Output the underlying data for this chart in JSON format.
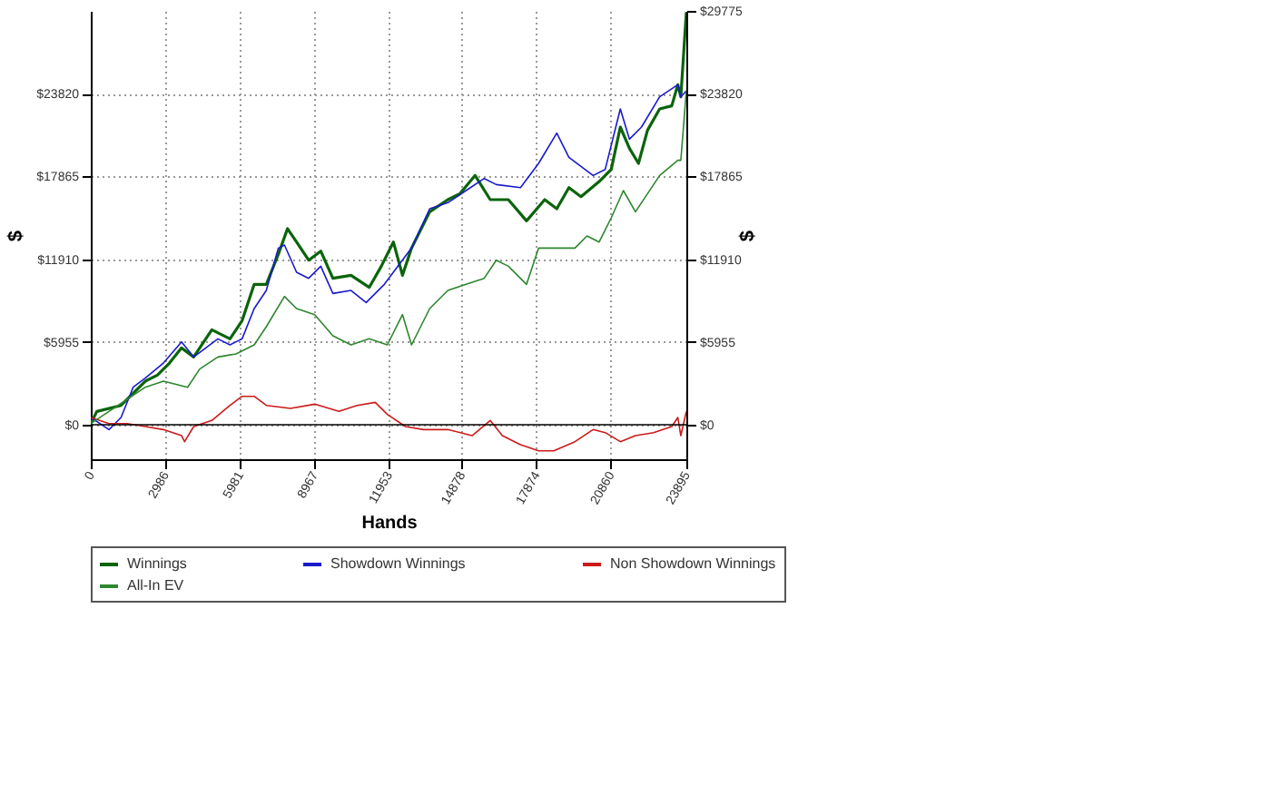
{
  "chart_data": {
    "type": "line",
    "xlabel": "Hands",
    "ylabel": "$",
    "y2label": "$",
    "xlim": [
      0,
      23895
    ],
    "xticks": [
      0,
      2986,
      5981,
      8967,
      11953,
      14878,
      17874,
      20860,
      23895
    ],
    "ylim": [
      -2480,
      29775
    ],
    "yticks": [
      {
        "value": 0,
        "label": "$0"
      },
      {
        "value": 5955,
        "label": "$5955"
      },
      {
        "value": 11910,
        "label": "$11910"
      },
      {
        "value": 17865,
        "label": "$17865"
      },
      {
        "value": 23820,
        "label": "$23820"
      }
    ],
    "y2lim": [
      -2480,
      29775
    ],
    "y2ticks": [
      {
        "value": 0,
        "label": "$0"
      },
      {
        "value": 5955,
        "label": "$5955"
      },
      {
        "value": 11910,
        "label": "$11910"
      },
      {
        "value": 17865,
        "label": "$17865"
      },
      {
        "value": 23820,
        "label": "$23820"
      },
      {
        "value": 29775,
        "label": "$29775"
      }
    ],
    "grid": true,
    "legend": "bottom",
    "marker": "none",
    "line_style": "solid",
    "ref_lines": [
      {
        "axis": "y",
        "value": 0,
        "color": "#000000"
      }
    ],
    "series": [
      {
        "name": "Winnings",
        "color": "#0b640b",
        "x": [
          0,
          243,
          1214,
          1700,
          2185,
          2671,
          3157,
          3642,
          4128,
          4857,
          5585,
          6071,
          6556,
          7042,
          7528,
          7892,
          8256,
          8742,
          9228,
          9713,
          10442,
          11170,
          11656,
          12141,
          12506,
          12870,
          13598,
          14327,
          14813,
          15420,
          16027,
          16755,
          17483,
          18212,
          18697,
          19183,
          19668,
          20397,
          20882,
          21246,
          21611,
          21975,
          22339,
          22825,
          23310,
          23553,
          23674,
          23895
        ],
        "values": [
          87,
          958,
          1393,
          2264,
          3134,
          3570,
          4440,
          5528,
          4875,
          6834,
          6181,
          7487,
          10099,
          10099,
          12275,
          14104,
          13146,
          11840,
          12493,
          10535,
          10752,
          9881,
          11405,
          13146,
          10752,
          12711,
          15322,
          16193,
          16628,
          17934,
          16193,
          16193,
          14670,
          16193,
          15540,
          17064,
          16411,
          17499,
          18370,
          21417,
          19893,
          18805,
          21199,
          22723,
          22941,
          24464,
          23593,
          29687
        ]
      },
      {
        "name": "Showdown Winnings",
        "color": "#1a1acc",
        "x": [
          0,
          729,
          1214,
          1700,
          2185,
          2914,
          3642,
          4128,
          5100,
          5585,
          6071,
          6556,
          7042,
          7528,
          7771,
          8256,
          8742,
          9228,
          9713,
          10442,
          11049,
          11777,
          12870,
          13598,
          14327,
          15055,
          15784,
          16270,
          17241,
          17969,
          18697,
          19183,
          19668,
          20154,
          20640,
          21246,
          21611,
          22096,
          22825,
          23553,
          23674,
          23895
        ],
        "values": [
          522,
          -348,
          522,
          2699,
          3352,
          4440,
          5964,
          4875,
          6181,
          5746,
          6181,
          8358,
          9664,
          12711,
          12928,
          10970,
          10535,
          11405,
          9446,
          9664,
          8793,
          10099,
          12711,
          15540,
          15975,
          16846,
          17717,
          17281,
          17064,
          18805,
          20982,
          19240,
          18587,
          17934,
          18370,
          22723,
          20546,
          21417,
          23593,
          24464,
          23593,
          24029
        ]
      },
      {
        "name": "Non Showdown Winnings",
        "color": "#cc1a1a",
        "x": [
          0,
          729,
          1457,
          2185,
          2914,
          3642,
          3764,
          4128,
          4857,
          5585,
          6071,
          6556,
          7042,
          8014,
          8985,
          9956,
          10685,
          11413,
          11899,
          12627,
          13355,
          14327,
          15298,
          16027,
          16512,
          17241,
          17969,
          18576,
          19426,
          20154,
          20640,
          21246,
          21853,
          22582,
          23310,
          23553,
          23674,
          23895
        ],
        "values": [
          522,
          87,
          87,
          -131,
          -348,
          -784,
          -1219,
          -131,
          305,
          1393,
          2046,
          2046,
          1393,
          1175,
          1480,
          958,
          1393,
          1611,
          740,
          -131,
          -348,
          -348,
          -784,
          305,
          -784,
          -1436,
          -1872,
          -1872,
          -1219,
          -348,
          -566,
          -1219,
          -784,
          -566,
          -131,
          522,
          -784,
          958
        ]
      },
      {
        "name": "All-In EV",
        "color": "#2e862e",
        "x": [
          0,
          729,
          1457,
          2185,
          2914,
          3885,
          4371,
          5100,
          5828,
          6556,
          7042,
          7771,
          8256,
          8985,
          9713,
          10442,
          11170,
          11899,
          12506,
          12870,
          13598,
          14327,
          15055,
          15784,
          16270,
          16755,
          17483,
          17969,
          18697,
          19426,
          19911,
          20397,
          20882,
          21368,
          21853,
          22339,
          22825,
          23553,
          23674,
          23895
        ],
        "values": [
          87,
          958,
          1828,
          2699,
          3134,
          2699,
          4005,
          4875,
          5093,
          5746,
          7052,
          9228,
          8358,
          7922,
          6399,
          5746,
          6181,
          5746,
          7922,
          5746,
          8358,
          9664,
          10099,
          10535,
          11840,
          11405,
          10099,
          12711,
          12711,
          12711,
          13581,
          13146,
          14887,
          16846,
          15322,
          16628,
          17934,
          19023,
          19023,
          24029
        ]
      }
    ]
  }
}
